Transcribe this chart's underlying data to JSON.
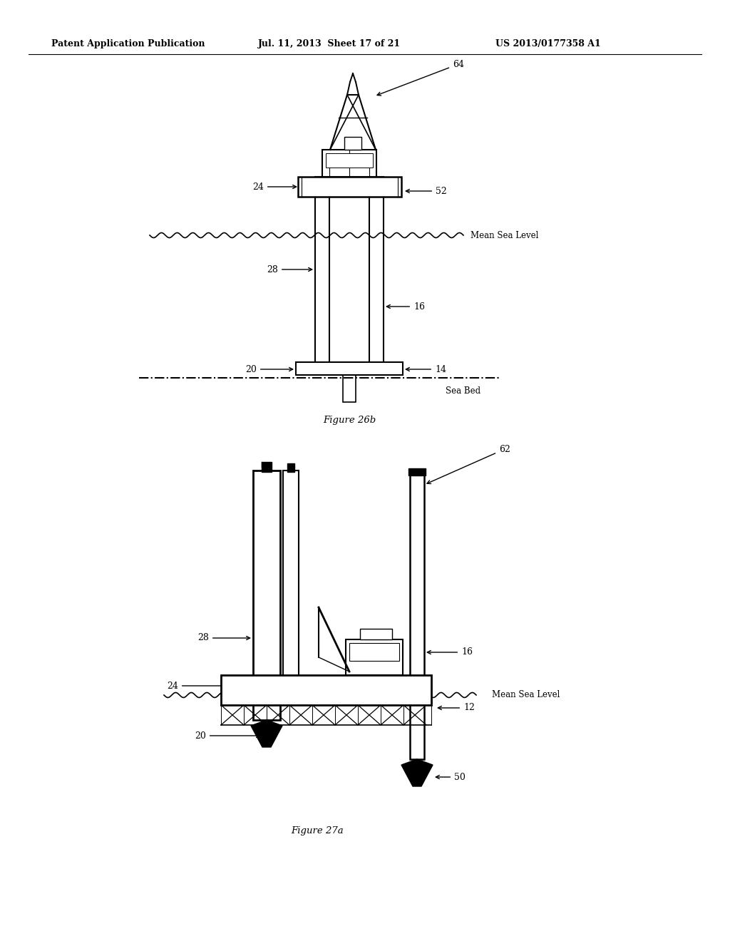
{
  "bg_color": "#ffffff",
  "page_width": 10.24,
  "page_height": 13.2,
  "header_text1": "Patent Application Publication",
  "header_text2": "Jul. 11, 2013  Sheet 17 of 21",
  "header_text3": "US 2013/0177358 A1",
  "fig1_caption": "Figure 26b",
  "fig2_caption": "Figure 27a",
  "line_color": "#000000"
}
